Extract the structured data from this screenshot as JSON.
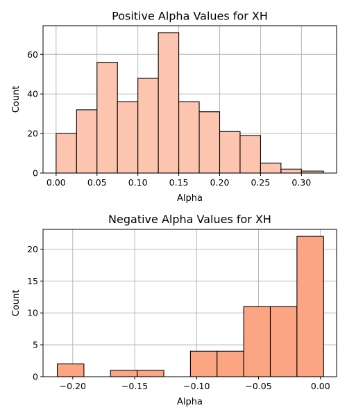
{
  "chart_data": [
    {
      "type": "bar",
      "title": "Positive Alpha Values for XH",
      "xlabel": "Alpha",
      "ylabel": "Count",
      "color": "#fdc5b0",
      "bin_edges": [
        0.0,
        0.025,
        0.05,
        0.075,
        0.1,
        0.125,
        0.15,
        0.175,
        0.2,
        0.225,
        0.25,
        0.275,
        0.3,
        0.327
      ],
      "values": [
        20,
        32,
        56,
        36,
        48,
        71,
        36,
        31,
        21,
        19,
        5,
        2,
        1
      ],
      "xlim": [
        -0.016,
        0.343
      ],
      "ylim": [
        0,
        74.5
      ],
      "xticks": [
        0.0,
        0.05,
        0.1,
        0.15,
        0.2,
        0.25,
        0.3
      ],
      "xtick_labels": [
        "0.00",
        "0.05",
        "0.10",
        "0.15",
        "0.20",
        "0.25",
        "0.30"
      ],
      "yticks": [
        0,
        20,
        40,
        60
      ],
      "ytick_labels": [
        "0",
        "20",
        "40",
        "60"
      ],
      "grid": true
    },
    {
      "type": "bar",
      "title": "Negative Alpha Values for XH",
      "xlabel": "Alpha",
      "ylabel": "Count",
      "color": "#fca582",
      "bin_edges": [
        -0.2125,
        -0.191,
        -0.1695,
        -0.148,
        -0.1265,
        -0.105,
        -0.0835,
        -0.062,
        -0.0405,
        -0.019,
        0.0025
      ],
      "values": [
        2,
        0,
        1,
        1,
        0,
        4,
        4,
        11,
        11,
        22
      ],
      "xlim": [
        -0.224,
        0.013
      ],
      "ylim": [
        0,
        23.1
      ],
      "xticks": [
        -0.2,
        -0.15,
        -0.1,
        -0.05,
        0.0
      ],
      "xtick_labels": [
        "−0.20",
        "−0.15",
        "−0.10",
        "−0.05",
        "0.00"
      ],
      "yticks": [
        0,
        5,
        10,
        15,
        20
      ],
      "ytick_labels": [
        "0",
        "5",
        "10",
        "15",
        "20"
      ],
      "grid": true
    }
  ]
}
